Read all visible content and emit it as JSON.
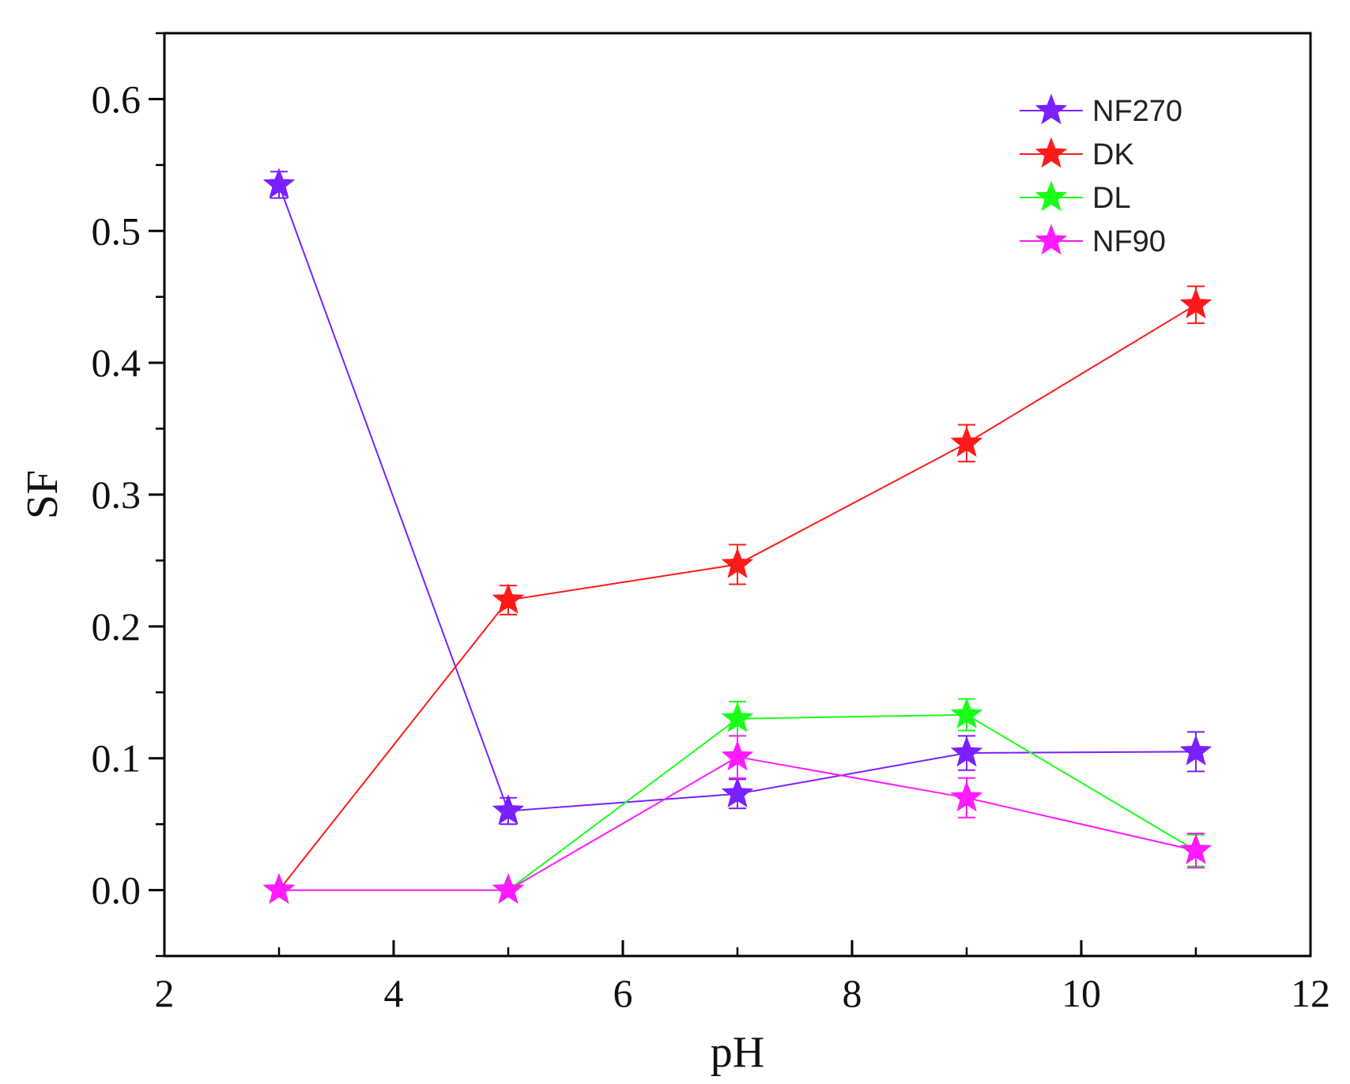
{
  "chart_data": {
    "type": "line",
    "title": "",
    "xlabel": "pH",
    "ylabel": "SF",
    "xlim": [
      2,
      12
    ],
    "ylim": [
      -0.05,
      0.65
    ],
    "xticks": [
      2,
      4,
      6,
      8,
      10,
      12
    ],
    "xtick_labels": [
      "2",
      "4",
      "6",
      "8",
      "10",
      "12"
    ],
    "yticks": [
      0.0,
      0.1,
      0.2,
      0.3,
      0.4,
      0.5,
      0.6
    ],
    "ytick_labels": [
      "0.0",
      "0.1",
      "0.2",
      "0.3",
      "0.4",
      "0.5",
      "0.6"
    ],
    "grid": false,
    "legend_position": "top-right",
    "x": [
      3,
      5,
      7,
      9,
      11
    ],
    "series": [
      {
        "name": "NF270",
        "color": "#7a1fff",
        "values": [
          0.535,
          0.06,
          0.073,
          0.104,
          0.105
        ],
        "errors": [
          0.01,
          0.01,
          0.011,
          0.013,
          0.015
        ]
      },
      {
        "name": "DK",
        "color": "#ff1a1a",
        "values": [
          0.0,
          0.22,
          0.247,
          0.339,
          0.444
        ],
        "errors": [
          0.0,
          0.011,
          0.015,
          0.014,
          0.014
        ]
      },
      {
        "name": "DL",
        "color": "#1aff1a",
        "values": [
          0.0,
          0.0,
          0.13,
          0.133,
          0.03
        ],
        "errors": [
          0.0,
          0.0,
          0.013,
          0.012,
          0.012
        ]
      },
      {
        "name": "NF90",
        "color": "#ff1aff",
        "values": [
          0.0,
          0.0,
          0.101,
          0.07,
          0.03
        ],
        "errors": [
          0.0,
          0.0,
          0.016,
          0.015,
          0.013
        ]
      }
    ]
  }
}
